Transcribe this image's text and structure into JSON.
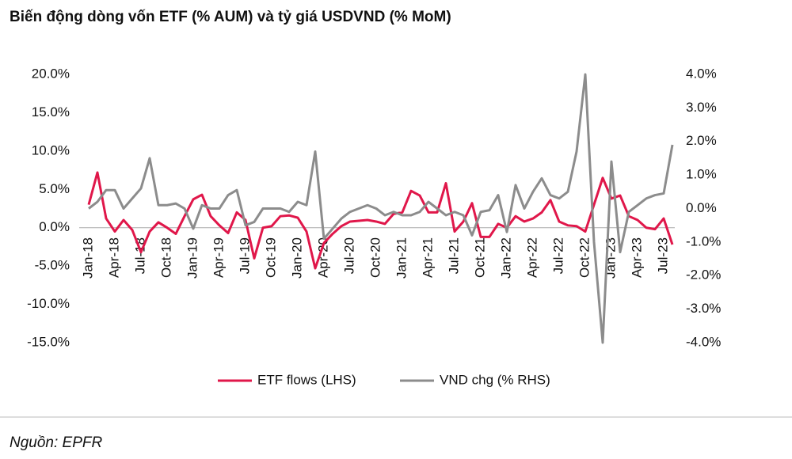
{
  "chart_data": {
    "type": "line",
    "title": "Biến động dòng vốn ETF (% AUM) và tỷ giá USDVND (% MoM)",
    "source": "Nguồn: EPFR",
    "categories": [
      "Jan-18",
      null,
      null,
      "Apr-18",
      null,
      null,
      "Jul-18",
      null,
      null,
      "Oct-18",
      null,
      null,
      "Jan-19",
      null,
      null,
      "Apr-19",
      null,
      null,
      "Jul-19",
      null,
      null,
      "Oct-19",
      null,
      null,
      "Jan-20",
      null,
      null,
      "Apr-20",
      null,
      null,
      "Jul-20",
      null,
      null,
      "Oct-20",
      null,
      null,
      "Jan-21",
      null,
      null,
      "Apr-21",
      null,
      null,
      "Jul-21",
      null,
      null,
      "Oct-21",
      null,
      null,
      "Jan-22",
      null,
      null,
      "Apr-22",
      null,
      null,
      "Jul-22",
      null,
      null,
      "Oct-22",
      null,
      null,
      "Jan-23",
      null,
      null,
      "Apr-23",
      null,
      null,
      "Jul-23",
      null
    ],
    "series": [
      {
        "name": "ETF flows (LHS)",
        "color": "#e0174a",
        "axis": "y",
        "values": [
          3.0,
          7.2,
          1.2,
          -0.5,
          1.0,
          -0.3,
          -3.2,
          -0.5,
          0.7,
          0.0,
          -0.8,
          1.5,
          3.7,
          4.3,
          1.5,
          0.3,
          -0.7,
          2.0,
          1.0,
          -4.0,
          0.0,
          0.2,
          1.5,
          1.6,
          1.3,
          -0.5,
          -5.3,
          -2.0,
          -0.8,
          0.2,
          0.8,
          0.9,
          1.0,
          0.8,
          0.5,
          1.8,
          2.0,
          4.8,
          4.2,
          2.0,
          2.0,
          5.8,
          -0.5,
          0.8,
          3.2,
          -1.2,
          -1.2,
          0.5,
          0.0,
          1.5,
          0.8,
          1.2,
          2.0,
          3.6,
          0.8,
          0.3,
          0.2,
          -0.5,
          3.0,
          6.5,
          3.8,
          4.2,
          1.5,
          1.0,
          0.0,
          -0.2,
          1.2,
          -2.2
        ]
      },
      {
        "name": "VND chg (% RHS)",
        "color": "#8c8c8c",
        "axis": "y2",
        "values": [
          0.0,
          0.2,
          0.55,
          0.55,
          0.0,
          0.3,
          0.6,
          1.5,
          0.1,
          0.1,
          0.15,
          0.0,
          -0.6,
          0.1,
          0.0,
          0.0,
          0.4,
          0.55,
          -0.5,
          -0.4,
          0.0,
          0.0,
          0.0,
          -0.1,
          0.2,
          0.1,
          1.7,
          -0.9,
          -0.6,
          -0.3,
          -0.1,
          0.0,
          0.1,
          0.0,
          -0.2,
          -0.1,
          -0.2,
          -0.2,
          -0.1,
          0.2,
          0.0,
          -0.2,
          -0.1,
          -0.2,
          -0.8,
          -0.1,
          -0.05,
          0.4,
          -0.7,
          0.7,
          0.0,
          0.5,
          0.9,
          0.4,
          0.3,
          0.5,
          1.7,
          4.0,
          -1.0,
          -4.0,
          1.4,
          -1.3,
          -0.1,
          0.1,
          0.3,
          0.4,
          0.45,
          1.9
        ]
      }
    ],
    "ylim": [
      -15,
      20
    ],
    "yticks": [
      {
        "value": -15,
        "label": "-15.0%"
      },
      {
        "value": -10,
        "label": "-10.0%"
      },
      {
        "value": -5,
        "label": "-5.0%"
      },
      {
        "value": 0,
        "label": "0.0%"
      },
      {
        "value": 5,
        "label": "5.0%"
      },
      {
        "value": 10,
        "label": "10.0%"
      },
      {
        "value": 15,
        "label": "15.0%"
      },
      {
        "value": 20,
        "label": "20.0%"
      }
    ],
    "y2lim": [
      -4,
      4
    ],
    "y2ticks": [
      {
        "value": -4,
        "label": "-4.0%"
      },
      {
        "value": -3,
        "label": "-3.0%"
      },
      {
        "value": -2,
        "label": "-2.0%"
      },
      {
        "value": -1,
        "label": "-1.0%"
      },
      {
        "value": 0,
        "label": "0.0%"
      },
      {
        "value": 1,
        "label": "1.0%"
      },
      {
        "value": 2,
        "label": "2.0%"
      },
      {
        "value": 3,
        "label": "3.0%"
      },
      {
        "value": 4,
        "label": "4.0%"
      }
    ],
    "legend": "bottom"
  }
}
